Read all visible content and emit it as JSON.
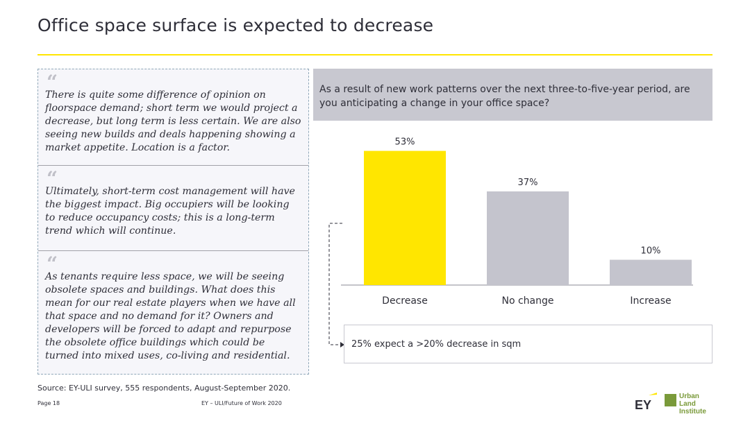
{
  "page_title": "Office space surface is expected to decrease",
  "quotes": [
    {
      "mark": "“",
      "text": "There is quite some difference of opinion on floorspace demand; short term we would project a decrease, but long term is less certain. We are also seeing new builds and deals happening showing a market appetite. Location is a factor."
    },
    {
      "mark": "“",
      "text": "Ultimately, short-term cost management will have the biggest impact. Big occupiers will be looking to reduce occupancy costs; this is a long-term trend which will continue."
    },
    {
      "mark": "“",
      "text": "As tenants require less space, we will be seeing obsolete spaces and buildings. What does this mean for our real estate players when we have all that space and no demand for it? Owners and developers will be forced to adapt and repurpose the obsolete office buildings which could be turned into mixed uses, co-living and residential."
    }
  ],
  "question": "As a result of new work patterns over the next three-to-five-year period, are you anticipating a change in your office space?",
  "chart_data": {
    "type": "bar",
    "categories": [
      "Decrease",
      "No change",
      "Increase"
    ],
    "values": [
      53,
      37,
      10
    ],
    "value_labels": [
      "53%",
      "37%",
      "10%"
    ],
    "colors": [
      "#ffe600",
      "#c4c4cd",
      "#c4c4cd"
    ],
    "ylim": [
      0,
      60
    ],
    "grid": false,
    "title": "",
    "xlabel": "",
    "ylabel": ""
  },
  "callout": "25% expect a >20% decrease in sqm",
  "source": "Source: EY-ULI survey, 555 respondents, August-September 2020.",
  "footer": {
    "page": "Page 18",
    "center": "EY – ULI/Future of Work 2020",
    "logo_ey": "EY",
    "logo_uli_line1": "Urban Land",
    "logo_uli_line2": "Institute"
  },
  "colors": {
    "accent": "#ffe600",
    "bar_neutral": "#c4c4cd",
    "panel": "#c8c8d0"
  }
}
